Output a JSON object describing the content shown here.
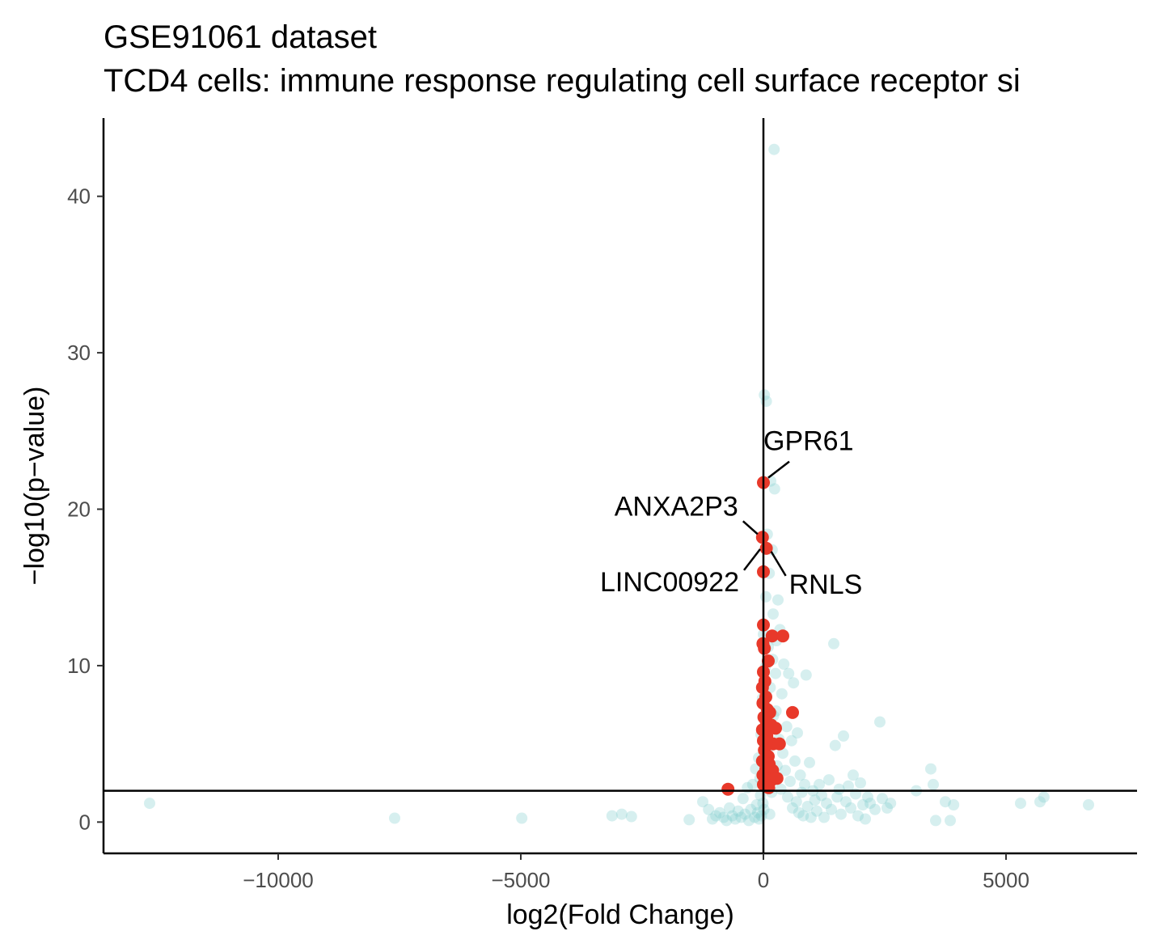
{
  "chart_data": {
    "type": "scatter",
    "title": "GSE91061 dataset",
    "subtitle": "TCD4 cells: immune response regulating cell surface receptor si",
    "xlabel": "log2(Fold Change)",
    "ylabel": "−log10(p−value)",
    "xlim": [
      -13600,
      7700
    ],
    "ylim": [
      -2,
      45
    ],
    "x_ticks": [
      -10000,
      -5000,
      0,
      5000
    ],
    "x_tick_labels": [
      "−10000",
      "−5000",
      "0",
      "5000"
    ],
    "y_ticks": [
      0,
      10,
      20,
      30,
      40
    ],
    "y_tick_labels": [
      "0",
      "10",
      "20",
      "30",
      "40"
    ],
    "vline_x": 0,
    "hline_y": 2,
    "grid": false,
    "legend": "none",
    "colors": {
      "background_genes": "#7fcdcd",
      "pathway_genes": "#e8392a"
    },
    "series": [
      {
        "color": "#7fcdcd",
        "points": [
          [
            -12650,
            1.2
          ],
          [
            -7600,
            0.25
          ],
          [
            -4980,
            0.25
          ],
          [
            -3120,
            0.4
          ],
          [
            -2920,
            0.5
          ],
          [
            -2720,
            0.35
          ],
          [
            -1530,
            0.15
          ],
          [
            -1250,
            1.3
          ],
          [
            -1130,
            0.8
          ],
          [
            -1050,
            0.2
          ],
          [
            -980,
            0.4
          ],
          [
            -900,
            0.6
          ],
          [
            -820,
            0.3
          ],
          [
            -760,
            0.1
          ],
          [
            -700,
            0.9
          ],
          [
            -640,
            0.4
          ],
          [
            -580,
            0.2
          ],
          [
            -520,
            0.7
          ],
          [
            -460,
            0.3
          ],
          [
            -420,
            1.5
          ],
          [
            -380,
            0.5
          ],
          [
            -330,
            2.2
          ],
          [
            -300,
            0.1
          ],
          [
            -260,
            0.8
          ],
          [
            -220,
            2.4
          ],
          [
            -180,
            0.3
          ],
          [
            -160,
            3.4
          ],
          [
            -140,
            1.1
          ],
          [
            -120,
            0.6
          ],
          [
            -100,
            4.1
          ],
          [
            -90,
            0.2
          ],
          [
            -70,
            2.8
          ],
          [
            -60,
            1.7
          ],
          [
            -50,
            5.6
          ],
          [
            -40,
            0.4
          ],
          [
            -30,
            3.9
          ],
          [
            -20,
            7.9
          ],
          [
            -10,
            1.2
          ],
          [
            0,
            12.0
          ],
          [
            10,
            0.8
          ],
          [
            20,
            27.3
          ],
          [
            30,
            4.6
          ],
          [
            40,
            9.9
          ],
          [
            50,
            14.4
          ],
          [
            60,
            26.9
          ],
          [
            70,
            2.3
          ],
          [
            80,
            18.4
          ],
          [
            90,
            6.2
          ],
          [
            100,
            11.2
          ],
          [
            110,
            3.1
          ],
          [
            120,
            15.9
          ],
          [
            130,
            0.5
          ],
          [
            140,
            8.6
          ],
          [
            150,
            21.8
          ],
          [
            160,
            4.9
          ],
          [
            170,
            1.9
          ],
          [
            180,
            17.4
          ],
          [
            190,
            10.4
          ],
          [
            200,
            13.3
          ],
          [
            210,
            6.8
          ],
          [
            220,
            43.0
          ],
          [
            230,
            21.3
          ],
          [
            240,
            2.7
          ],
          [
            250,
            9.5
          ],
          [
            260,
            7.1
          ],
          [
            270,
            11.6
          ],
          [
            280,
            3.6
          ],
          [
            300,
            14.2
          ],
          [
            320,
            5.3
          ],
          [
            340,
            12.3
          ],
          [
            360,
            2.1
          ],
          [
            380,
            8.2
          ],
          [
            400,
            4.4
          ],
          [
            420,
            10.1
          ],
          [
            450,
            3.3
          ],
          [
            480,
            6.1
          ],
          [
            500,
            1.6
          ],
          [
            520,
            9.5
          ],
          [
            550,
            2.6
          ],
          [
            580,
            5.2
          ],
          [
            600,
            0.9
          ],
          [
            620,
            8.9
          ],
          [
            650,
            3.9
          ],
          [
            680,
            1.3
          ],
          [
            700,
            5.7
          ],
          [
            730,
            0.6
          ],
          [
            760,
            3.0
          ],
          [
            790,
            1.9
          ],
          [
            820,
            0.4
          ],
          [
            850,
            2.4
          ],
          [
            880,
            9.4
          ],
          [
            910,
            1.0
          ],
          [
            950,
            3.8
          ],
          [
            980,
            0.3
          ],
          [
            1020,
            2.0
          ],
          [
            1060,
            1.4
          ],
          [
            1100,
            0.7
          ],
          [
            1150,
            2.4
          ],
          [
            1200,
            1.7
          ],
          [
            1250,
            0.3
          ],
          [
            1300,
            1.2
          ],
          [
            1350,
            2.7
          ],
          [
            1400,
            0.8
          ],
          [
            1450,
            11.4
          ],
          [
            1480,
            4.9
          ],
          [
            1520,
            1.6
          ],
          [
            1560,
            2.1
          ],
          [
            1600,
            0.5
          ],
          [
            1650,
            5.5
          ],
          [
            1700,
            1.3
          ],
          [
            1750,
            2.3
          ],
          [
            1800,
            0.9
          ],
          [
            1850,
            3.0
          ],
          [
            1900,
            1.8
          ],
          [
            1950,
            0.4
          ],
          [
            2000,
            2.5
          ],
          [
            2050,
            1.1
          ],
          [
            2100,
            0.2
          ],
          [
            2150,
            1.6
          ],
          [
            2200,
            1.2
          ],
          [
            2300,
            0.8
          ],
          [
            2400,
            6.4
          ],
          [
            2450,
            1.5
          ],
          [
            2550,
            0.9
          ],
          [
            2620,
            1.2
          ],
          [
            3150,
            2.0
          ],
          [
            3450,
            3.4
          ],
          [
            3500,
            2.4
          ],
          [
            3550,
            0.1
          ],
          [
            3750,
            1.3
          ],
          [
            3850,
            0.1
          ],
          [
            3920,
            1.1
          ],
          [
            5300,
            1.2
          ],
          [
            5700,
            1.3
          ],
          [
            5780,
            1.6
          ],
          [
            6700,
            1.1
          ]
        ]
      },
      {
        "color": "#e8392a",
        "points": [
          [
            0,
            21.7
          ],
          [
            -20,
            18.2
          ],
          [
            60,
            17.5
          ],
          [
            0,
            16.0
          ],
          [
            -730,
            2.1
          ],
          [
            0,
            12.6
          ],
          [
            180,
            11.9
          ],
          [
            400,
            11.9
          ],
          [
            -10,
            11.4
          ],
          [
            20,
            11.1
          ],
          [
            100,
            10.3
          ],
          [
            0,
            9.6
          ],
          [
            30,
            9.0
          ],
          [
            -20,
            8.6
          ],
          [
            50,
            8.0
          ],
          [
            -10,
            7.6
          ],
          [
            80,
            7.2
          ],
          [
            130,
            7.0
          ],
          [
            600,
            7.0
          ],
          [
            10,
            6.7
          ],
          [
            60,
            6.4
          ],
          [
            160,
            6.2
          ],
          [
            -20,
            5.9
          ],
          [
            250,
            6.0
          ],
          [
            70,
            5.5
          ],
          [
            0,
            5.2
          ],
          [
            200,
            5.0
          ],
          [
            330,
            5.0
          ],
          [
            20,
            4.6
          ],
          [
            100,
            4.2
          ],
          [
            -20,
            3.9
          ],
          [
            120,
            3.7
          ],
          [
            50,
            3.4
          ],
          [
            190,
            3.3
          ],
          [
            -10,
            3.0
          ],
          [
            70,
            2.8
          ],
          [
            170,
            2.7
          ],
          [
            280,
            2.8
          ],
          [
            0,
            2.4
          ],
          [
            110,
            2.2
          ]
        ]
      }
    ],
    "labels": [
      {
        "gene": "GPR61",
        "x": 0,
        "y": 21.7
      },
      {
        "gene": "ANXA2P3",
        "x": -20,
        "y": 18.2
      },
      {
        "gene": "LINC00922",
        "x": 0,
        "y": 16.0
      },
      {
        "gene": "RNLS",
        "x": 60,
        "y": 17.5
      }
    ]
  }
}
